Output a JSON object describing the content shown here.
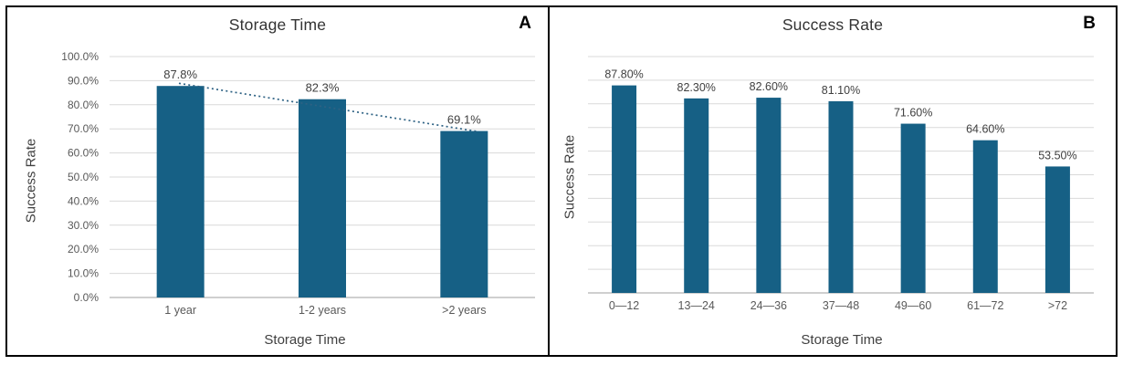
{
  "chart_data": [
    {
      "type": "bar",
      "panel_label": "A",
      "title": "Storage Time",
      "xlabel": "Storage Time",
      "ylabel": "Success Rate",
      "categories": [
        "1 year",
        "1-2 years",
        ">2 years"
      ],
      "values": [
        87.8,
        82.3,
        69.1
      ],
      "data_labels": [
        "87.8%",
        "82.3%",
        "69.1%"
      ],
      "ylim": [
        0,
        100
      ],
      "ytick_step": 10,
      "ytick_labels": [
        "0.0%",
        "10.0%",
        "20.0%",
        "30.0%",
        "40.0%",
        "50.0%",
        "60.0%",
        "70.0%",
        "80.0%",
        "90.0%",
        "100.0%"
      ],
      "grid": true,
      "legend": false,
      "bar_color": "#166085",
      "grid_color": "#d9d9d9",
      "axis_line_color": "#bfbfbf",
      "label_color": "#404040",
      "tick_color": "#595959",
      "trendline": {
        "style": "dotted",
        "color": "#2e6284",
        "from_value": 88.9,
        "to_value": 68.9
      }
    },
    {
      "type": "bar",
      "panel_label": "B",
      "title": "Success Rate",
      "xlabel": "Storage Time",
      "ylabel": "Success Rate",
      "categories": [
        "0—12",
        "13—24",
        "24—36",
        "37—48",
        "49—60",
        "61—72",
        ">72"
      ],
      "values": [
        87.8,
        82.3,
        82.6,
        81.1,
        71.6,
        64.6,
        53.5
      ],
      "data_labels": [
        "87.80%",
        "82.30%",
        "82.60%",
        "81.10%",
        "71.60%",
        "64.60%",
        "53.50%"
      ],
      "ylim": [
        0,
        100
      ],
      "ytick_step": 10,
      "ytick_labels": [],
      "grid": true,
      "legend": false,
      "bar_color": "#166085",
      "grid_color": "#d9d9d9",
      "axis_line_color": "#bfbfbf",
      "label_color": "#404040",
      "tick_color": "#595959"
    }
  ]
}
